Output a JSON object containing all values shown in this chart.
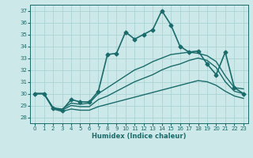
{
  "title": "",
  "xlabel": "Humidex (Indice chaleur)",
  "xlim": [
    -0.5,
    23.5
  ],
  "ylim": [
    27.5,
    37.5
  ],
  "yticks": [
    28,
    29,
    30,
    31,
    32,
    33,
    34,
    35,
    36,
    37
  ],
  "xticks": [
    0,
    1,
    2,
    3,
    4,
    5,
    6,
    7,
    8,
    9,
    10,
    11,
    12,
    13,
    14,
    15,
    16,
    17,
    18,
    19,
    20,
    21,
    22,
    23
  ],
  "bg_color": "#cce8e8",
  "grid_color": "#aad4d4",
  "line_color": "#1a6b6b",
  "lines": [
    {
      "x": [
        0,
        1,
        2,
        3,
        4,
        5,
        6,
        7,
        8,
        9,
        10,
        11,
        12,
        13,
        14,
        15,
        16,
        17,
        18,
        19,
        20,
        21,
        22,
        23
      ],
      "y": [
        30.0,
        30.0,
        28.8,
        28.6,
        29.5,
        29.3,
        29.3,
        30.2,
        33.3,
        33.4,
        35.2,
        34.6,
        35.0,
        35.4,
        37.0,
        35.8,
        34.0,
        33.5,
        33.6,
        32.5,
        31.6,
        33.5,
        30.5,
        30.0
      ],
      "marker": "D",
      "markersize": 2.5,
      "linewidth": 1.2,
      "linestyle": "-"
    },
    {
      "x": [
        0,
        1,
        2,
        3,
        4,
        5,
        6,
        7,
        8,
        9,
        10,
        11,
        12,
        13,
        14,
        15,
        16,
        17,
        18,
        19,
        20,
        21,
        22,
        23
      ],
      "y": [
        30.0,
        30.0,
        28.8,
        28.7,
        29.2,
        29.1,
        29.2,
        30.0,
        30.5,
        31.0,
        31.5,
        32.0,
        32.3,
        32.7,
        33.0,
        33.3,
        33.4,
        33.5,
        33.4,
        33.2,
        32.7,
        31.5,
        30.5,
        30.4
      ],
      "marker": null,
      "markersize": 0,
      "linewidth": 1.0,
      "linestyle": "-"
    },
    {
      "x": [
        0,
        1,
        2,
        3,
        4,
        5,
        6,
        7,
        8,
        9,
        10,
        11,
        12,
        13,
        14,
        15,
        16,
        17,
        18,
        19,
        20,
        21,
        22,
        23
      ],
      "y": [
        30.0,
        30.0,
        28.8,
        28.6,
        29.0,
        28.9,
        28.9,
        29.5,
        29.8,
        30.2,
        30.6,
        31.0,
        31.3,
        31.6,
        32.0,
        32.3,
        32.5,
        32.8,
        33.0,
        32.8,
        32.2,
        31.0,
        30.2,
        30.0
      ],
      "marker": null,
      "markersize": 0,
      "linewidth": 1.0,
      "linestyle": "-"
    },
    {
      "x": [
        0,
        1,
        2,
        3,
        4,
        5,
        6,
        7,
        8,
        9,
        10,
        11,
        12,
        13,
        14,
        15,
        16,
        17,
        18,
        19,
        20,
        21,
        22,
        23
      ],
      "y": [
        30.0,
        30.0,
        28.7,
        28.5,
        28.7,
        28.6,
        28.6,
        28.9,
        29.1,
        29.3,
        29.5,
        29.7,
        29.9,
        30.1,
        30.3,
        30.5,
        30.7,
        30.9,
        31.1,
        31.0,
        30.7,
        30.2,
        29.8,
        29.6
      ],
      "marker": null,
      "markersize": 0,
      "linewidth": 1.0,
      "linestyle": "-"
    }
  ]
}
